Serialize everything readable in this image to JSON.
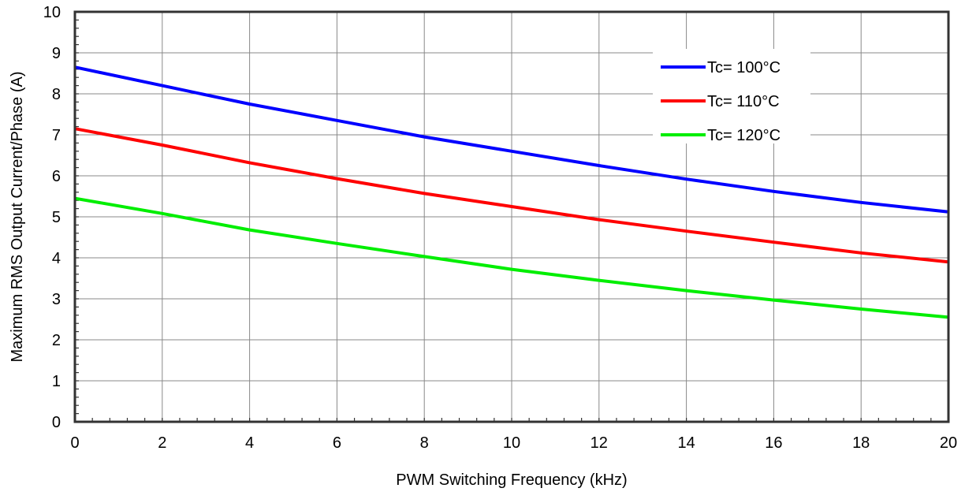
{
  "chart_data": {
    "type": "line",
    "title": "",
    "xlabel": "PWM Switching Frequency (kHz)",
    "ylabel": "Maximum RMS Output Current/Phase (A)",
    "xlim": [
      0,
      20
    ],
    "ylim": [
      0,
      10
    ],
    "xticks": [
      0,
      2,
      4,
      6,
      8,
      10,
      12,
      14,
      16,
      18,
      20
    ],
    "yticks": [
      0,
      1,
      2,
      3,
      4,
      5,
      6,
      7,
      8,
      9,
      10
    ],
    "x_tick_labels": [
      "0",
      "2",
      "4",
      "6",
      "8",
      "10",
      "12",
      "14",
      "16",
      "18",
      "20"
    ],
    "y_tick_labels": [
      "0",
      "1",
      "2",
      "3",
      "4",
      "5",
      "6",
      "7",
      "8",
      "9",
      "10"
    ],
    "grid": true,
    "legend_position": "top-right",
    "series": [
      {
        "name": "Tc= 100°C",
        "color": "#0000ff",
        "x": [
          0,
          2,
          4,
          6,
          8,
          10,
          12,
          14,
          16,
          18,
          20
        ],
        "y": [
          8.65,
          8.2,
          7.75,
          7.35,
          6.95,
          6.6,
          6.25,
          5.92,
          5.62,
          5.35,
          5.12
        ]
      },
      {
        "name": "Tc= 110°C",
        "color": "#ff0000",
        "x": [
          0,
          2,
          4,
          6,
          8,
          10,
          12,
          14,
          16,
          18,
          20
        ],
        "y": [
          7.15,
          6.75,
          6.32,
          5.93,
          5.57,
          5.25,
          4.93,
          4.65,
          4.38,
          4.12,
          3.9
        ]
      },
      {
        "name": "Tc= 120°C",
        "color": "#00ee00",
        "x": [
          0,
          2,
          4,
          6,
          8,
          10,
          12,
          14,
          16,
          18,
          20
        ],
        "y": [
          5.45,
          5.08,
          4.68,
          4.35,
          4.03,
          3.72,
          3.45,
          3.2,
          2.97,
          2.75,
          2.55
        ]
      }
    ]
  }
}
